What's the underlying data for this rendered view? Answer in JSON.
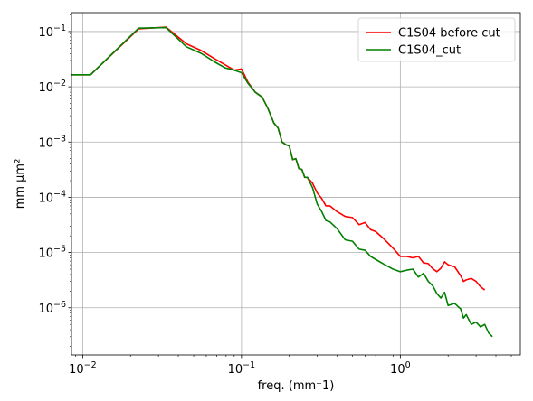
{
  "chart_data": {
    "type": "line",
    "xscale": "log",
    "yscale": "log",
    "xlim": [
      0.0085,
      5.7
    ],
    "ylim": [
      1.4e-07,
      0.22
    ],
    "xlabel": "freq. (mm⁻1)",
    "ylabel": "mm μm²",
    "grid": true,
    "legend_loc": "upper right",
    "x_ticks": [
      {
        "value": 0.01,
        "label": "10",
        "exp": "−2"
      },
      {
        "value": 0.1,
        "label": "10",
        "exp": "−1"
      },
      {
        "value": 1,
        "label": "10",
        "exp": "0"
      }
    ],
    "y_ticks": [
      {
        "value": 1e-06,
        "label": "10",
        "exp": "−6"
      },
      {
        "value": 1e-05,
        "label": "10",
        "exp": "−5"
      },
      {
        "value": 0.0001,
        "label": "10",
        "exp": "−4"
      },
      {
        "value": 0.001,
        "label": "10",
        "exp": "−3"
      },
      {
        "value": 0.01,
        "label": "10",
        "exp": "−2"
      },
      {
        "value": 0.1,
        "label": "10",
        "exp": "−1"
      }
    ],
    "series": [
      {
        "name": "C1S04 before cut",
        "color": "#ff0000",
        "x": [
          0.0085,
          0.0112,
          0.0225,
          0.0335,
          0.045,
          0.056,
          0.068,
          0.079,
          0.09,
          0.1,
          0.11,
          0.122,
          0.135,
          0.147,
          0.16,
          0.17,
          0.18,
          0.19,
          0.2,
          0.21,
          0.22,
          0.23,
          0.24,
          0.25,
          0.26,
          0.28,
          0.3,
          0.32,
          0.34,
          0.36,
          0.4,
          0.45,
          0.5,
          0.55,
          0.6,
          0.65,
          0.7,
          0.8,
          0.9,
          1.0,
          1.1,
          1.2,
          1.3,
          1.4,
          1.5,
          1.6,
          1.7,
          1.8,
          1.9,
          2.0,
          2.2,
          2.4,
          2.5,
          2.6,
          2.8,
          3.0,
          3.2,
          3.4
        ],
        "y": [
          0.0165,
          0.0165,
          0.112,
          0.12,
          0.06,
          0.045,
          0.032,
          0.025,
          0.02,
          0.021,
          0.012,
          0.008,
          0.0065,
          0.004,
          0.0022,
          0.0018,
          0.001,
          0.0009,
          0.00085,
          0.00048,
          0.0005,
          0.00033,
          0.00032,
          0.00023,
          0.00023,
          0.00018,
          0.00012,
          9.5e-05,
          7e-05,
          7e-05,
          5.5e-05,
          4.5e-05,
          4.3e-05,
          3.2e-05,
          3.5e-05,
          2.6e-05,
          2.4e-05,
          1.7e-05,
          1.2e-05,
          8.5e-06,
          8.5e-06,
          8e-06,
          8.5e-06,
          6.5e-06,
          6.3e-06,
          5.1e-06,
          4.5e-06,
          5.2e-06,
          6.8e-06,
          6e-06,
          5.5e-06,
          3.8e-06,
          3e-06,
          3.2e-06,
          3.4e-06,
          3e-06,
          2.4e-06,
          2.1e-06
        ]
      },
      {
        "name": "C1S04_cut",
        "color": "#008000",
        "x": [
          0.0085,
          0.0112,
          0.0225,
          0.0335,
          0.045,
          0.056,
          0.068,
          0.079,
          0.09,
          0.1,
          0.11,
          0.122,
          0.135,
          0.147,
          0.16,
          0.17,
          0.18,
          0.19,
          0.2,
          0.21,
          0.22,
          0.23,
          0.24,
          0.25,
          0.26,
          0.28,
          0.3,
          0.32,
          0.34,
          0.36,
          0.4,
          0.45,
          0.5,
          0.55,
          0.6,
          0.65,
          0.7,
          0.8,
          0.9,
          1.0,
          1.1,
          1.2,
          1.3,
          1.4,
          1.5,
          1.6,
          1.7,
          1.8,
          1.9,
          2.0,
          2.2,
          2.4,
          2.5,
          2.6,
          2.8,
          3.0,
          3.2,
          3.4,
          3.6,
          3.8
        ],
        "y": [
          0.0165,
          0.0165,
          0.115,
          0.118,
          0.053,
          0.04,
          0.028,
          0.022,
          0.02,
          0.018,
          0.0115,
          0.008,
          0.0065,
          0.004,
          0.0022,
          0.0018,
          0.001,
          0.0009,
          0.00085,
          0.00048,
          0.0005,
          0.00033,
          0.00032,
          0.00023,
          0.00023,
          0.00015,
          7.5e-05,
          5.5e-05,
          3.8e-05,
          3.6e-05,
          2.7e-05,
          1.7e-05,
          1.6e-05,
          1.15e-05,
          1.1e-05,
          8.5e-06,
          7.5e-06,
          6e-06,
          5e-06,
          4.5e-06,
          4.8e-06,
          5e-06,
          3.6e-06,
          4.2e-06,
          3e-06,
          2.5e-06,
          1.8e-06,
          1.5e-06,
          1.9e-06,
          1.1e-06,
          1.2e-06,
          9.5e-07,
          6.5e-07,
          7.5e-07,
          5e-07,
          5.5e-07,
          4.5e-07,
          5e-07,
          3.5e-07,
          3e-07
        ]
      }
    ]
  }
}
